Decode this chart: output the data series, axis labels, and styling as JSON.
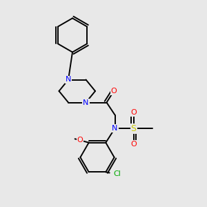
{
  "background_color": "#e8e8e8",
  "atom_colors": {
    "N": "#0000ff",
    "O": "#ff0000",
    "S": "#cccc00",
    "Cl": "#00aa00"
  },
  "bond_color": "#000000",
  "figsize": [
    3.0,
    3.0
  ],
  "dpi": 100
}
